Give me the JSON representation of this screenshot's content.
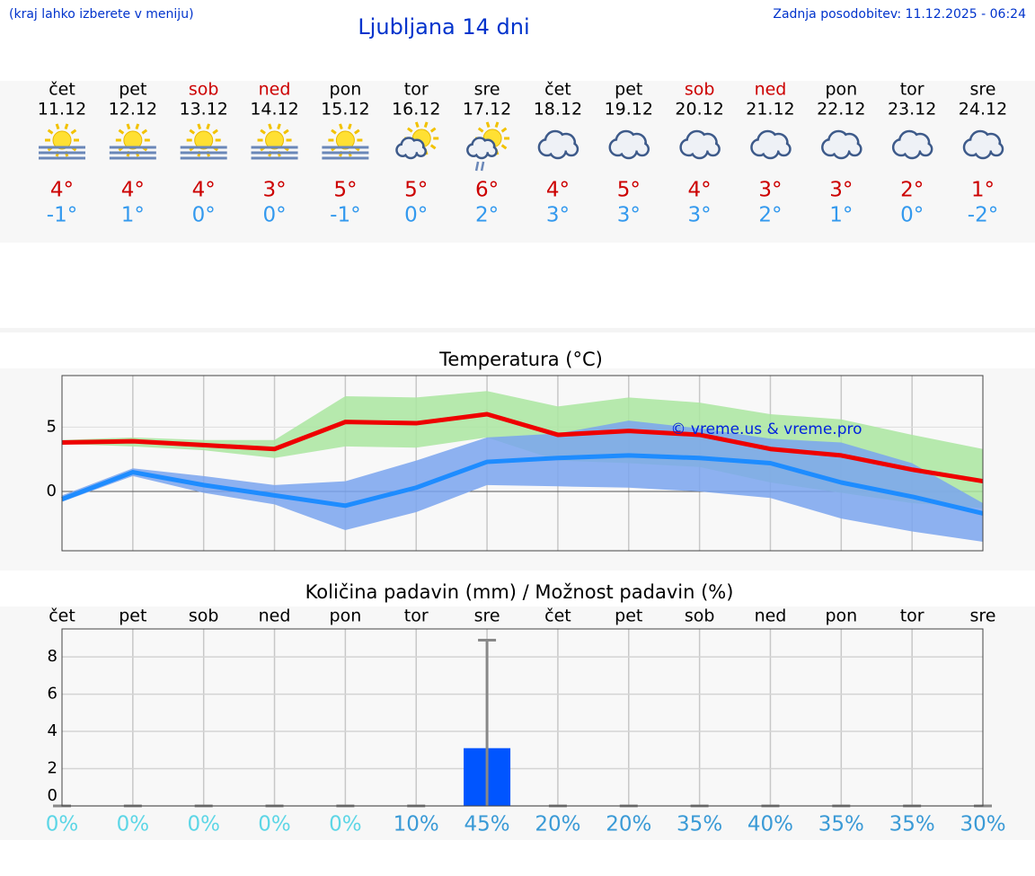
{
  "header": {
    "note": "(kraj lahko izberete v meniju)",
    "title": "Ljubljana 14 dni",
    "updated": "Zadnja posodobitev: 11.12.2025 - 06:24"
  },
  "forecast": {
    "high_color": "#cc0000",
    "low_color": "#3399ee",
    "days": [
      {
        "weekday": "čet",
        "date": "11.12",
        "high": "4°",
        "low": "-1°",
        "color": "#000000"
      },
      {
        "weekday": "pet",
        "date": "12.12",
        "high": "4°",
        "low": "1°",
        "color": "#000000"
      },
      {
        "weekday": "sob",
        "date": "13.12",
        "high": "4°",
        "low": "0°",
        "color": "#cc0000"
      },
      {
        "weekday": "ned",
        "date": "14.12",
        "high": "3°",
        "low": "0°",
        "color": "#cc0000"
      },
      {
        "weekday": "pon",
        "date": "15.12",
        "high": "5°",
        "low": "-1°",
        "color": "#000000"
      },
      {
        "weekday": "tor",
        "date": "16.12",
        "high": "5°",
        "low": "0°",
        "color": "#000000"
      },
      {
        "weekday": "sre",
        "date": "17.12",
        "high": "6°",
        "low": "2°",
        "color": "#000000"
      },
      {
        "weekday": "čet",
        "date": "18.12",
        "high": "4°",
        "low": "3°",
        "color": "#000000"
      },
      {
        "weekday": "pet",
        "date": "19.12",
        "high": "5°",
        "low": "3°",
        "color": "#000000"
      },
      {
        "weekday": "sob",
        "date": "20.12",
        "high": "4°",
        "low": "3°",
        "color": "#cc0000"
      },
      {
        "weekday": "ned",
        "date": "21.12",
        "high": "3°",
        "low": "2°",
        "color": "#cc0000"
      },
      {
        "weekday": "pon",
        "date": "22.12",
        "high": "3°",
        "low": "1°",
        "color": "#000000"
      },
      {
        "weekday": "tor",
        "date": "23.12",
        "high": "2°",
        "low": "0°",
        "color": "#000000"
      },
      {
        "weekday": "sre",
        "date": "24.12",
        "high": "1°",
        "low": "-2°",
        "color": "#000000"
      }
    ]
  },
  "chart_data": [
    {
      "type": "line",
      "title": "Temperatura (°C)",
      "annotation": "© vreme.us & vreme.pro",
      "ylim": [
        -4.6,
        9
      ],
      "yticks": [
        0,
        5
      ],
      "grid": true,
      "series": [
        {
          "color": "#ee0000",
          "range_color": "#aae6a0",
          "values": [
            3.8,
            3.9,
            3.6,
            3.3,
            5.4,
            5.3,
            6.0,
            4.4,
            4.7,
            4.4,
            3.3,
            2.8,
            1.7,
            0.8
          ],
          "range_high": [
            4.0,
            4.2,
            4.0,
            4.0,
            7.4,
            7.3,
            7.8,
            6.6,
            7.3,
            6.9,
            6.0,
            5.6,
            4.4,
            3.3
          ],
          "range_low": [
            3.7,
            3.5,
            3.2,
            2.6,
            3.5,
            3.4,
            4.2,
            2.4,
            2.2,
            1.9,
            0.7,
            -0.1,
            -0.9,
            -1.3
          ]
        },
        {
          "color": "#1e8cff",
          "range_color": "#7aa4ee",
          "values": [
            -0.6,
            1.5,
            0.5,
            -0.3,
            -1.1,
            0.3,
            2.3,
            2.6,
            2.8,
            2.6,
            2.2,
            0.7,
            -0.4,
            -1.7
          ],
          "range_high": [
            -0.3,
            1.8,
            1.2,
            0.5,
            0.8,
            2.4,
            4.2,
            4.5,
            5.5,
            4.9,
            4.1,
            3.8,
            2.2,
            -0.9
          ],
          "range_low": [
            -0.8,
            1.2,
            -0.1,
            -1.0,
            -3.0,
            -1.6,
            0.5,
            0.4,
            0.3,
            0.0,
            -0.5,
            -2.1,
            -3.1,
            -3.9
          ]
        }
      ]
    },
    {
      "type": "bar",
      "title": "Količina padavin (mm) / Možnost padavin (%)",
      "categories": [
        "čet",
        "pet",
        "sob",
        "ned",
        "pon",
        "tor",
        "sre",
        "čet",
        "pet",
        "sob",
        "ned",
        "pon",
        "tor",
        "sre"
      ],
      "values": [
        0,
        0,
        0,
        0,
        0,
        0,
        3.1,
        0,
        0,
        0,
        0,
        0,
        0,
        0
      ],
      "range_high": [
        0,
        0,
        0,
        0,
        0,
        0,
        8.9,
        0,
        0,
        0,
        0,
        0,
        0,
        0
      ],
      "color": "#0055ff",
      "range_color": "#888888",
      "ylim": [
        0,
        9.5
      ],
      "yticks": [
        0,
        2,
        4,
        6,
        8
      ],
      "grid": true,
      "probability": {
        "values": [
          0,
          0,
          0,
          0,
          0,
          10,
          45,
          20,
          20,
          35,
          40,
          35,
          35,
          30
        ],
        "value_labels": [
          "0%",
          "0%",
          "0%",
          "0%",
          "0%",
          "10%",
          "45%",
          "20%",
          "20%",
          "35%",
          "40%",
          "35%",
          "35%",
          "30%"
        ],
        "color": "#3a9ad6",
        "zero_color": "#5dd6e6"
      }
    }
  ]
}
